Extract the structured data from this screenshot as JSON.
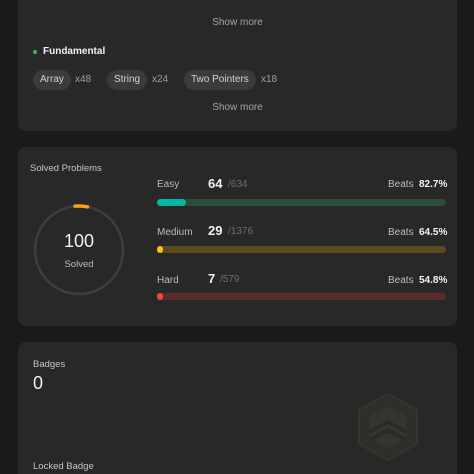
{
  "skills": {
    "show_more_label": "Show more",
    "fundamental": {
      "label": "Fundamental",
      "chips": [
        {
          "name": "Array",
          "count": "x48"
        },
        {
          "name": "String",
          "count": "x24"
        },
        {
          "name": "Two Pointers",
          "count": "x18"
        }
      ]
    }
  },
  "solved": {
    "title": "Solved Problems",
    "total": "100",
    "total_label": "Solved",
    "ring_color": "#ffa116",
    "difficulties": [
      {
        "label": "Easy",
        "count": "64",
        "total": "/634",
        "beats_label": "Beats",
        "beats": "82.7%",
        "fill": 0.101,
        "color": "#00b8a3",
        "track": "#2b4d3a"
      },
      {
        "label": "Medium",
        "count": "29",
        "total": "/1376",
        "beats_label": "Beats",
        "beats": "64.5%",
        "fill": 0.021,
        "color": "#ffc01e",
        "track": "#5a4a1e"
      },
      {
        "label": "Hard",
        "count": "7",
        "total": "/579",
        "beats_label": "Beats",
        "beats": "54.8%",
        "fill": 0.012,
        "color": "#ef4743",
        "track": "#5a2b2b"
      }
    ]
  },
  "badges": {
    "title": "Badges",
    "count": "0",
    "locked_label": "Locked Badge"
  }
}
